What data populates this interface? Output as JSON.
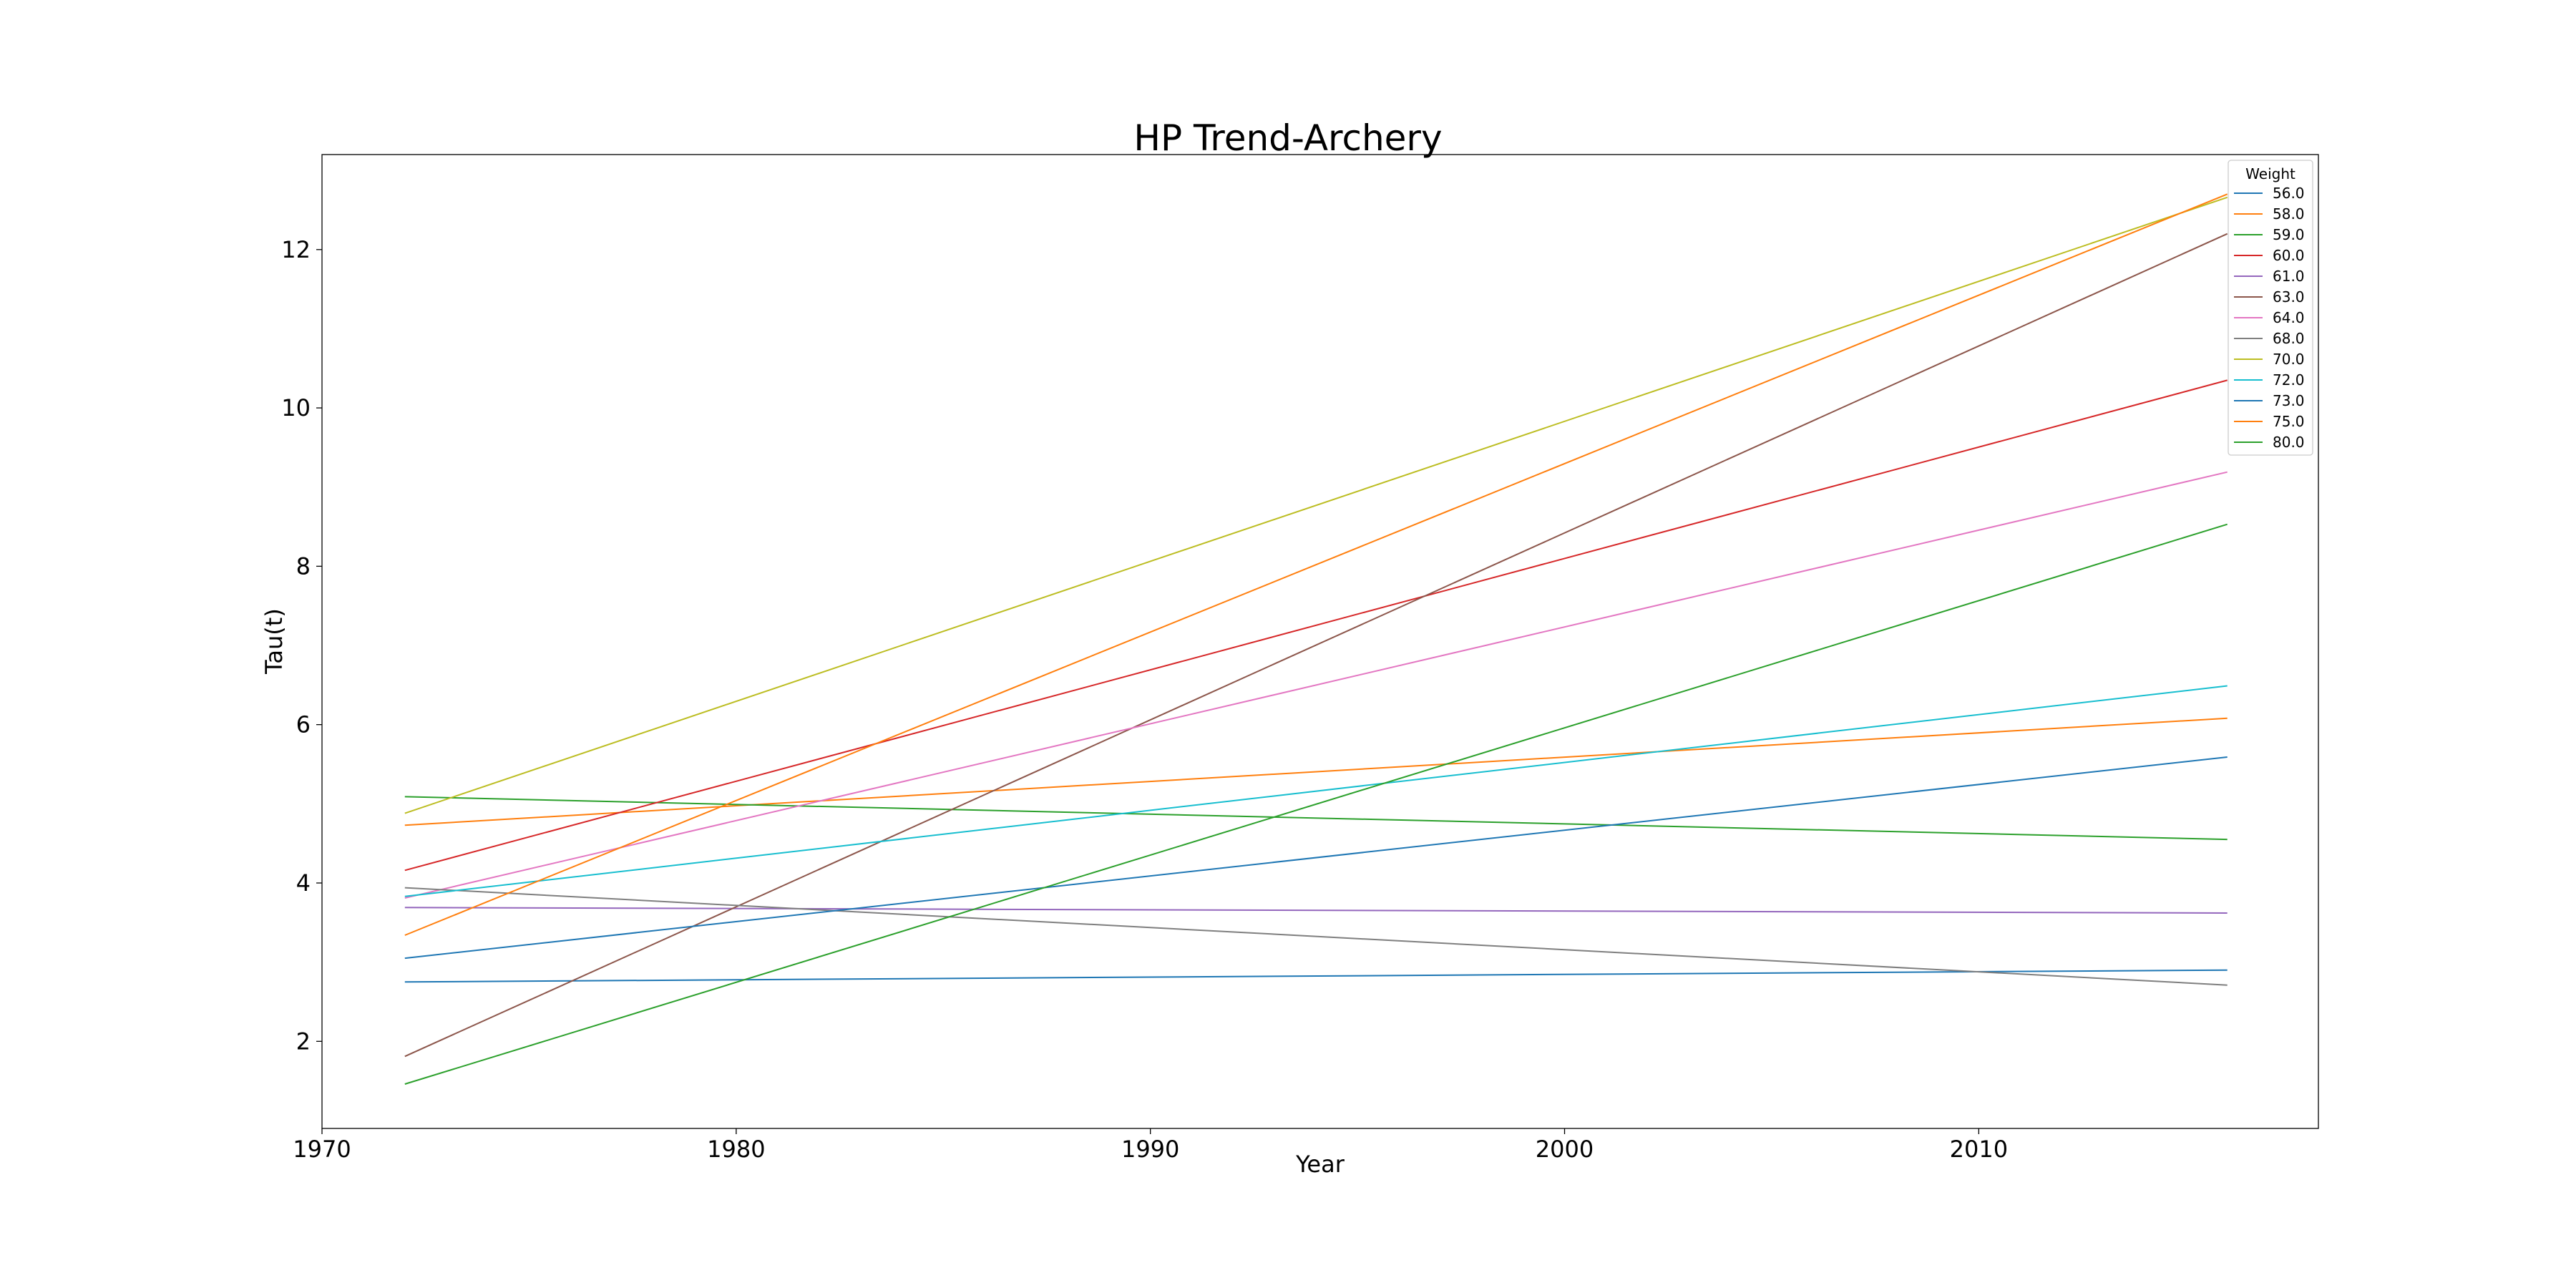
{
  "chart_data": {
    "type": "line",
    "title": "HP Trend-Archery",
    "xlabel": "Year",
    "ylabel": "Tau(t)",
    "xlim": [
      1970,
      2018.2
    ],
    "ylim": [
      0.9,
      13.2
    ],
    "xticks": [
      1970,
      1980,
      1990,
      2000,
      2010
    ],
    "yticks": [
      2,
      4,
      6,
      8,
      10,
      12
    ],
    "grid": false,
    "legend_title": "Weight",
    "legend_position": "top-right",
    "x": [
      1972,
      2016
    ],
    "series": [
      {
        "name": "56.0",
        "color": "#1f77b4",
        "values": [
          2.75,
          2.9
        ]
      },
      {
        "name": "58.0",
        "color": "#ff7f0e",
        "values": [
          4.73,
          6.08
        ]
      },
      {
        "name": "59.0",
        "color": "#2ca02c",
        "values": [
          5.09,
          4.55
        ]
      },
      {
        "name": "60.0",
        "color": "#d62728",
        "values": [
          4.16,
          10.35
        ]
      },
      {
        "name": "61.0",
        "color": "#9467bd",
        "values": [
          3.69,
          3.62
        ]
      },
      {
        "name": "63.0",
        "color": "#8c564b",
        "values": [
          1.81,
          12.2
        ]
      },
      {
        "name": "64.0",
        "color": "#e377c2",
        "values": [
          3.81,
          9.19
        ]
      },
      {
        "name": "68.0",
        "color": "#7f7f7f",
        "values": [
          3.94,
          2.71
        ]
      },
      {
        "name": "70.0",
        "color": "#bcbd22",
        "values": [
          4.88,
          12.66
        ]
      },
      {
        "name": "72.0",
        "color": "#17becf",
        "values": [
          3.83,
          6.49
        ]
      },
      {
        "name": "73.0",
        "color": "#1f77b4",
        "values": [
          3.05,
          5.59
        ]
      },
      {
        "name": "75.0",
        "color": "#ff7f0e",
        "values": [
          3.34,
          12.7
        ]
      },
      {
        "name": "80.0",
        "color": "#2ca02c",
        "values": [
          1.46,
          8.53
        ]
      }
    ]
  }
}
